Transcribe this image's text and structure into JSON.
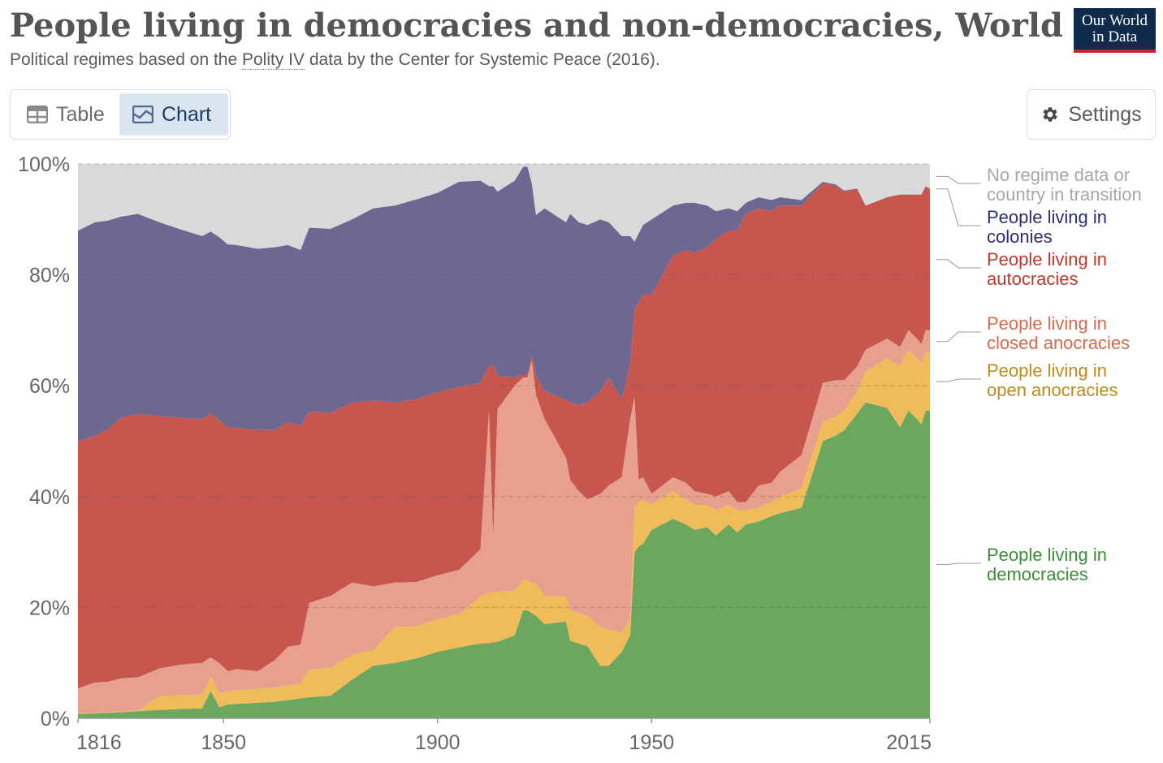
{
  "header": {
    "title": "People living in democracies and non-democracies, World",
    "subtitle_before": "Political regimes based on the ",
    "subtitle_link": "Polity IV",
    "subtitle_after": " data by the Center for Systemic Peace (2016).",
    "logo_line1": "Our World",
    "logo_line2": "in Data"
  },
  "controls": {
    "table_label": "Table",
    "chart_label": "Chart",
    "settings_label": "Settings",
    "active_tab": "Chart"
  },
  "chart_data": {
    "type": "area",
    "stacked": true,
    "x": [
      1816,
      1820,
      1823,
      1826,
      1830,
      1835,
      1840,
      1845,
      1847,
      1849,
      1851,
      1853,
      1858,
      1862,
      1865,
      1868,
      1870,
      1875,
      1880,
      1885,
      1890,
      1895,
      1900,
      1905,
      1910,
      1912,
      1913,
      1914,
      1918,
      1920,
      1921,
      1922,
      1923,
      1925,
      1930,
      1931,
      1933,
      1935,
      1938,
      1940,
      1943,
      1945,
      1946,
      1947,
      1948,
      1950,
      1955,
      1958,
      1960,
      1963,
      1965,
      1968,
      1970,
      1972,
      1975,
      1978,
      1980,
      1985,
      1990,
      1993,
      1995,
      1998,
      2000,
      2005,
      2008,
      2010,
      2012,
      2013,
      2014,
      2015
    ],
    "xlim": [
      1816,
      2015
    ],
    "ylim": [
      0,
      100
    ],
    "yticks": [
      "0%",
      "20%",
      "40%",
      "60%",
      "80%",
      "100%"
    ],
    "xticks": [
      "1816",
      "1850",
      "1900",
      "1950",
      "2015"
    ],
    "grid": true,
    "legend_position": "right",
    "series": [
      {
        "name": "People living in democracies",
        "color": "#6ca75f",
        "text_color": "#3e8b37",
        "values": [
          0.8,
          0.9,
          1.0,
          1.1,
          1.3,
          1.5,
          1.7,
          1.8,
          5.0,
          2.0,
          2.5,
          2.6,
          2.8,
          3.0,
          3.3,
          3.6,
          3.8,
          4.1,
          7.0,
          9.5,
          10.0,
          10.8,
          12.0,
          12.8,
          13.5,
          13.6,
          13.7,
          13.8,
          15.0,
          19.5,
          19.5,
          19.0,
          18.5,
          17.0,
          17.5,
          14.0,
          13.5,
          13.0,
          9.5,
          9.5,
          12.0,
          15.0,
          30.0,
          31.0,
          31.5,
          34.0,
          36.0,
          35.0,
          34.0,
          34.5,
          33.0,
          35.0,
          33.5,
          35.0,
          35.5,
          36.5,
          37.0,
          38.0,
          50.0,
          51.0,
          52.0,
          55.0,
          57.0,
          56.0,
          52.5,
          55.5,
          54.0,
          53.0,
          55.5,
          55.5
        ]
      },
      {
        "name": "People living in open anocracies",
        "color": "#efbc59",
        "text_color": "#c08a1b",
        "values": [
          0.1,
          0.1,
          0.1,
          0.1,
          0.1,
          2.5,
          2.5,
          2.5,
          2.5,
          2.5,
          2.5,
          2.5,
          2.5,
          2.5,
          2.6,
          2.7,
          5.0,
          5.0,
          4.5,
          2.8,
          6.5,
          5.8,
          5.8,
          6.0,
          8.5,
          9.0,
          9.0,
          9.0,
          8.0,
          5.5,
          5.5,
          5.5,
          5.8,
          5.0,
          4.5,
          5.5,
          5.5,
          5.5,
          7.0,
          6.5,
          3.5,
          3.0,
          8.0,
          8.0,
          8.0,
          4.5,
          5.0,
          4.5,
          4.5,
          4.0,
          4.5,
          3.5,
          4.0,
          2.5,
          2.5,
          2.5,
          3.0,
          3.5,
          3.5,
          3.5,
          3.5,
          4.0,
          5.5,
          9.0,
          11.0,
          11.0,
          11.0,
          11.0,
          10.5,
          10.5
        ]
      },
      {
        "name": "People living in closed anocracies",
        "color": "#e7a08b",
        "text_color": "#d36b4f",
        "values": [
          4.5,
          5.5,
          5.5,
          6.0,
          6.0,
          5.0,
          5.5,
          5.7,
          3.5,
          5.5,
          3.5,
          3.8,
          3.2,
          5.0,
          7.0,
          7.0,
          12.0,
          13.0,
          13.0,
          11.5,
          8.0,
          8.0,
          8.0,
          8.0,
          8.5,
          33.0,
          10.0,
          33.0,
          37.0,
          36.5,
          36.5,
          40.0,
          34.0,
          32.0,
          25.0,
          23.5,
          22.0,
          21.0,
          24.0,
          26.0,
          28.0,
          36.0,
          20.0,
          4.0,
          4.0,
          2.0,
          2.5,
          3.0,
          2.5,
          2.0,
          2.5,
          2.5,
          1.5,
          1.5,
          4.0,
          3.5,
          4.5,
          6.0,
          7.0,
          6.5,
          5.5,
          4.5,
          4.0,
          3.5,
          3.5,
          3.5,
          3.5,
          3.5,
          4.0,
          4.0
        ]
      },
      {
        "name": "People living in autocracies",
        "color": "#c7564e",
        "text_color": "#c0392b",
        "values": [
          44.5,
          44.5,
          45.5,
          47.0,
          47.5,
          45.5,
          44.5,
          44.0,
          44.0,
          43.8,
          44.0,
          43.5,
          43.5,
          41.5,
          40.5,
          39.5,
          34.5,
          33.0,
          32.5,
          33.5,
          32.5,
          33.0,
          33.0,
          33.0,
          30.0,
          8.0,
          31.0,
          6.0,
          1.5,
          0.5,
          0.5,
          1.0,
          3.5,
          5.0,
          10.5,
          14.0,
          15.5,
          17.5,
          18.5,
          19.5,
          14.0,
          10.0,
          16.0,
          32.0,
          33.0,
          36.0,
          40.0,
          42.0,
          43.0,
          44.5,
          46.5,
          47.0,
          49.0,
          52.0,
          50.0,
          49.0,
          48.0,
          45.0,
          36.0,
          35.0,
          34.0,
          32.0,
          26.0,
          25.5,
          27.5,
          24.5,
          26.0,
          27.0,
          26.0,
          25.5
        ]
      },
      {
        "name": "People living in colonies",
        "color": "#6c6892",
        "text_color": "#2b2d6e",
        "values": [
          38.1,
          38.5,
          37.7,
          36.3,
          36.1,
          35.0,
          34.0,
          33.0,
          32.8,
          33.0,
          33.0,
          33.0,
          32.7,
          33.0,
          32.0,
          31.7,
          33.2,
          33.2,
          33.0,
          34.7,
          35.5,
          36.0,
          36.0,
          37.0,
          36.5,
          32.4,
          32.3,
          33.2,
          35.5,
          37.5,
          37.5,
          31.0,
          29.0,
          33.0,
          32.0,
          34.0,
          33.0,
          32.0,
          31.0,
          28.0,
          29.5,
          23.0,
          12.0,
          12.5,
          12.5,
          13.5,
          9.0,
          8.5,
          9.0,
          7.5,
          5.0,
          4.0,
          3.5,
          2.0,
          2.0,
          2.0,
          1.5,
          1.0,
          0.3,
          0.3,
          0.2,
          0.1,
          0.0,
          0.0,
          0.0,
          0.0,
          0.0,
          0.0,
          0.0,
          0.0
        ]
      },
      {
        "name": "No regime data or country in transition",
        "color": "#d9d9d9",
        "text_color": "#a7a7a7",
        "values": [
          12.0,
          10.5,
          10.2,
          9.5,
          9.0,
          11.0,
          11.8,
          13.0,
          12.2,
          13.2,
          14.5,
          14.6,
          15.3,
          15.0,
          14.6,
          15.5,
          11.5,
          11.7,
          10.0,
          8.0,
          7.5,
          6.4,
          5.2,
          3.2,
          3.0,
          4.0,
          4.0,
          5.0,
          3.0,
          0.5,
          0.5,
          3.5,
          9.2,
          8.0,
          10.5,
          9.0,
          10.5,
          11.0,
          10.0,
          10.5,
          13.0,
          13.0,
          14.0,
          12.5,
          11.0,
          10.0,
          7.5,
          7.0,
          7.0,
          7.5,
          8.5,
          8.0,
          8.5,
          7.0,
          6.0,
          6.5,
          6.0,
          6.5,
          3.2,
          3.7,
          4.8,
          4.4,
          7.5,
          6.0,
          5.5,
          5.5,
          5.5,
          5.5,
          4.0,
          4.5
        ]
      }
    ]
  }
}
